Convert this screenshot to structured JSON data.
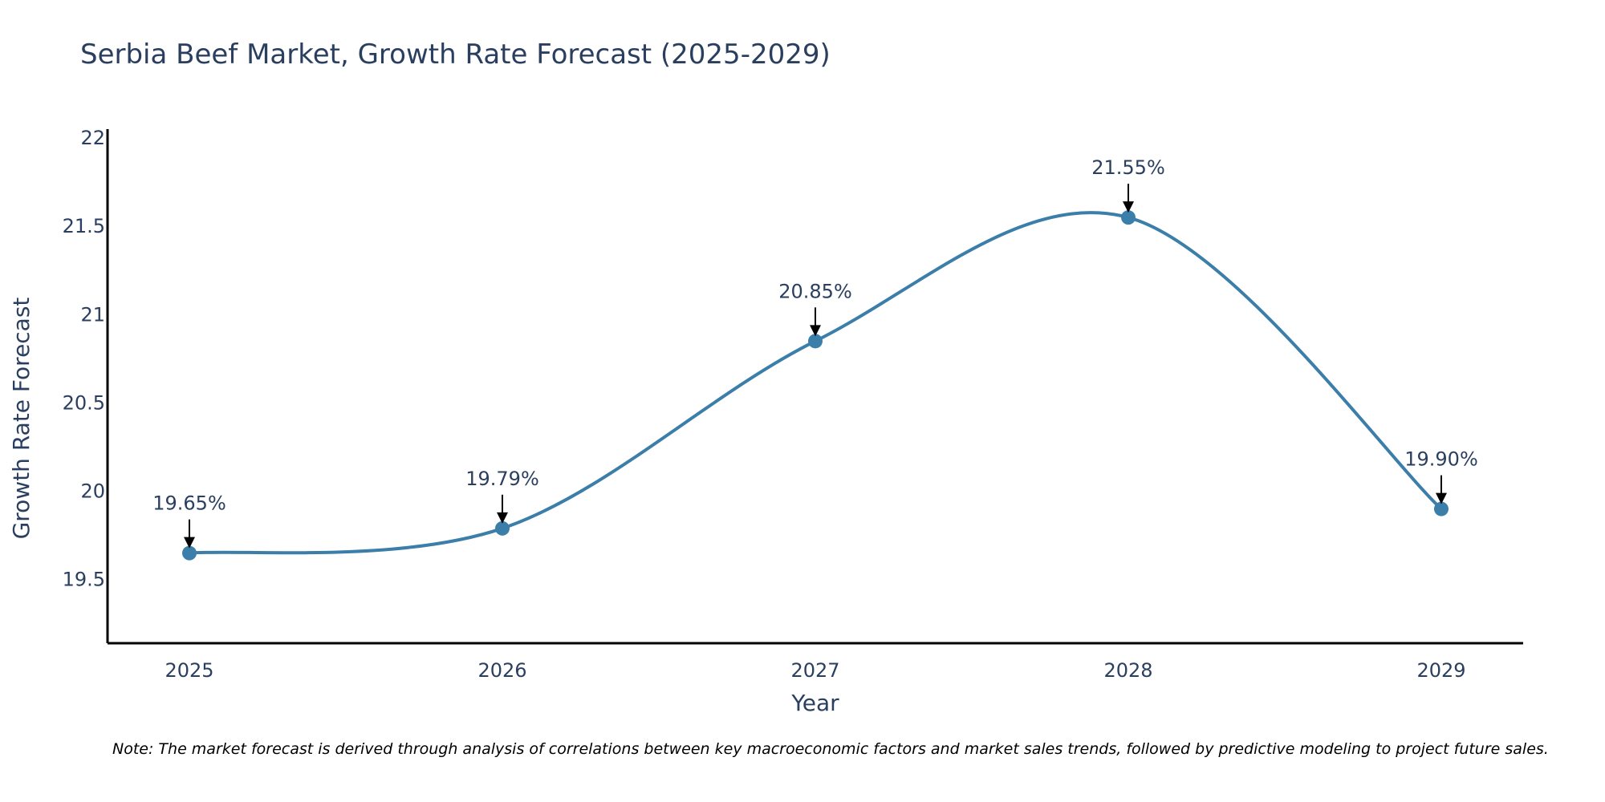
{
  "chart_data": {
    "type": "line",
    "title": "Serbia Beef Market, Growth Rate Forecast (2025-2029)",
    "xlabel": "Year",
    "ylabel": "Growth Rate Forecast",
    "categories": [
      "2025",
      "2026",
      "2027",
      "2028",
      "2029"
    ],
    "series": [
      {
        "name": "Growth Rate Forecast",
        "values": [
          19.65,
          19.79,
          20.85,
          21.55,
          19.9
        ],
        "color": "#3b7ea9"
      }
    ],
    "annotations": [
      "19.65%",
      "19.79%",
      "20.85%",
      "21.55%",
      "19.90%"
    ],
    "ylim": [
      19.14,
      22.05
    ],
    "yticks": [
      19.5,
      20,
      20.5,
      21,
      21.5,
      22
    ],
    "ytick_labels": [
      "19.5",
      "20",
      "20.5",
      "21",
      "21.5",
      "22"
    ],
    "grid": false,
    "line_shape": "spline",
    "note": "Note: The market forecast is derived through analysis of correlations between key macroeconomic factors and market sales trends, followed by predictive modeling to project future sales."
  }
}
